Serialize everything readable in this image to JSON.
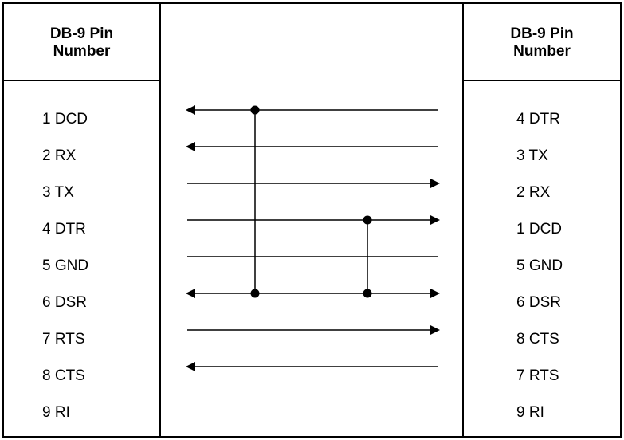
{
  "left_header": [
    "DB-9 Pin",
    "Number"
  ],
  "right_header": [
    "DB-9 Pin",
    "Number"
  ],
  "left_pins": [
    "1 DCD",
    "2 RX",
    "3 TX",
    "4 DTR",
    "5 GND",
    "6 DSR",
    "7 RTS",
    "8 CTS",
    "9 RI"
  ],
  "right_pins": [
    "4 DTR",
    "3 TX",
    "2 RX",
    "1 DCD",
    "5 GND",
    "6 DSR",
    "8 CTS",
    "7 RTS",
    "9 RI"
  ],
  "connections": [
    {
      "row": 0,
      "direction": "left"
    },
    {
      "row": 1,
      "direction": "left"
    },
    {
      "row": 2,
      "direction": "right"
    },
    {
      "row": 3,
      "direction": "right"
    },
    {
      "row": 4,
      "direction": "none"
    },
    {
      "row": 5,
      "direction": "both"
    },
    {
      "row": 6,
      "direction": "right"
    },
    {
      "row": 7,
      "direction": "left"
    }
  ],
  "jumpers": [
    {
      "from_row": 0,
      "to_row": 5,
      "side": "left"
    },
    {
      "from_row": 3,
      "to_row": 5,
      "side": "right"
    }
  ],
  "colors": {
    "line": "#000000",
    "background": "#ffffff"
  }
}
